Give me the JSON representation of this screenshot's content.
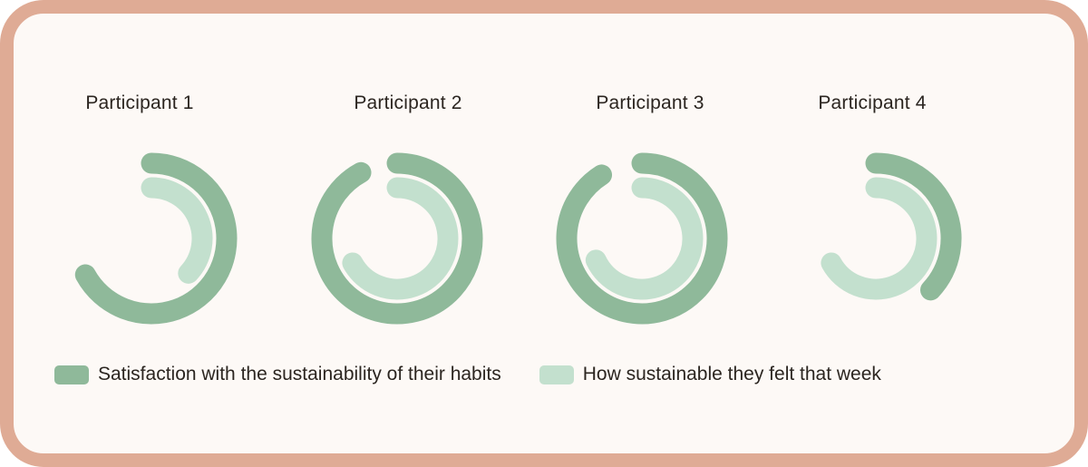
{
  "chart_data": {
    "type": "radial-bar",
    "participants": [
      "Participant 1",
      "Participant 2",
      "Participant 3",
      "Participant 4"
    ],
    "series": [
      {
        "name": "Satisfaction with the sustainability of their habits",
        "color": "#8fb99a",
        "values": [
          0.67,
          0.92,
          0.91,
          0.37
        ]
      },
      {
        "name": "How sustainable they felt that week",
        "color": "#c3e0ce",
        "values": [
          0.37,
          0.67,
          0.68,
          0.67
        ]
      }
    ],
    "value_scale": "fraction of full circle, clockwise from top",
    "legend_position": "bottom-left"
  }
}
